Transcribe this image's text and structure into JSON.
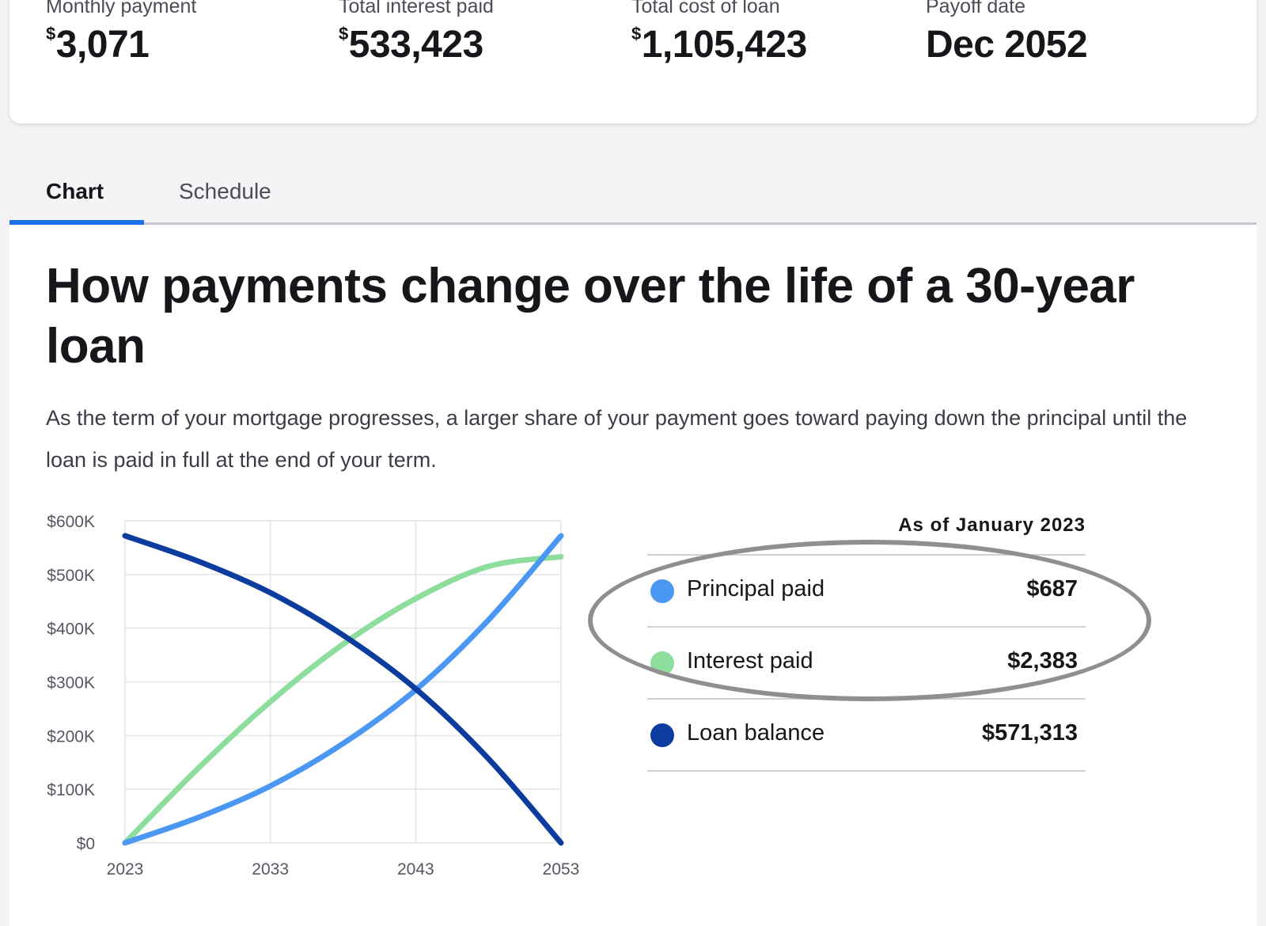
{
  "summary": {
    "monthly_payment": {
      "label": "Monthly payment",
      "currency": "$",
      "value": "3,071"
    },
    "total_interest": {
      "label": "Total interest paid",
      "currency": "$",
      "value": "533,423"
    },
    "total_cost": {
      "label": "Total cost of loan",
      "currency": "$",
      "value": "1,105,423"
    },
    "payoff_date": {
      "label": "Payoff date",
      "value": "Dec 2052"
    }
  },
  "tabs": [
    {
      "label": "Chart",
      "active": true
    },
    {
      "label": "Schedule",
      "active": false
    }
  ],
  "content": {
    "title": "How payments change over the life of a 30-year loan",
    "description": "As the term of your mortgage progresses, a larger share of your payment goes toward paying down the principal until the loan is paid in full at the end of your term."
  },
  "legend": {
    "heading": "As of January 2023",
    "items": [
      {
        "label": "Principal paid",
        "value": "$687",
        "color": "#4a97f4"
      },
      {
        "label": "Interest paid",
        "value": "$2,383",
        "color": "#8ddd9c"
      },
      {
        "label": "Loan balance",
        "value": "$571,313",
        "color": "#0b3c9e"
      }
    ]
  },
  "chart_data": {
    "type": "line",
    "y_ticks": [
      "$0",
      "$100K",
      "$200K",
      "$300K",
      "$400K",
      "$500K",
      "$600K"
    ],
    "x_ticks": [
      "2023",
      "2033",
      "2043",
      "2053"
    ],
    "ylim": [
      0,
      600000
    ],
    "xlim": [
      2023,
      2053
    ],
    "grid": true,
    "series": [
      {
        "name": "Principal paid",
        "color": "#4a97f4",
        "x": [
          2023,
          2028,
          2033,
          2038,
          2043,
          2048,
          2053
        ],
        "y": [
          0,
          47000,
          106000,
          185000,
          285000,
          415000,
          572000
        ]
      },
      {
        "name": "Interest paid",
        "color": "#8ddd9c",
        "x": [
          2023,
          2028,
          2033,
          2038,
          2043,
          2048,
          2053
        ],
        "y": [
          0,
          138000,
          263000,
          370000,
          455000,
          515000,
          533000
        ]
      },
      {
        "name": "Loan balance",
        "color": "#0b3c9e",
        "x": [
          2023,
          2028,
          2033,
          2038,
          2043,
          2048,
          2053
        ],
        "y": [
          572000,
          525000,
          466000,
          387000,
          287000,
          157000,
          0
        ]
      }
    ]
  }
}
